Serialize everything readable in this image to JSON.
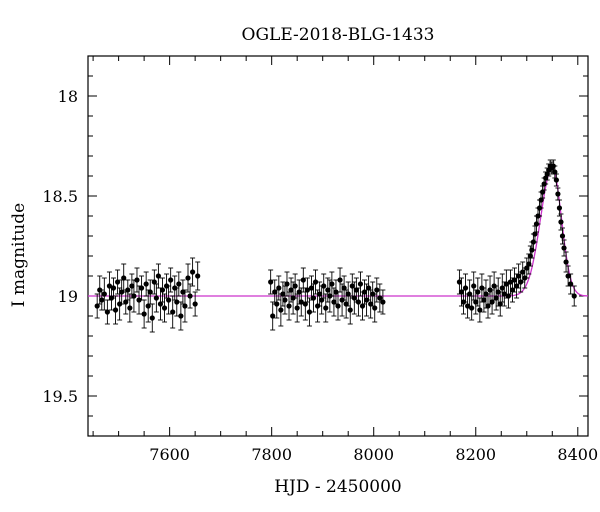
{
  "chart_data": {
    "type": "scatter",
    "title": "OGLE-2018-BLG-1433",
    "xlabel": "HJD - 2450000",
    "ylabel": "I magnitude",
    "xlim": [
      7440,
      8420
    ],
    "ylim": [
      17.8,
      19.7
    ],
    "y_inverted": true,
    "grid": false,
    "xticks_major": [
      7600,
      7800,
      8000,
      8200,
      8400
    ],
    "xtick_labels": [
      "7600",
      "7800",
      "8000",
      "8200",
      "8400"
    ],
    "yticks_major": [
      18,
      18.5,
      19,
      19.5
    ],
    "ytick_labels": [
      "18",
      "18.5",
      "19",
      "19.5"
    ],
    "marker_color": "#000000",
    "model_color": "#cc33cc",
    "model": {
      "baseline": 19.0,
      "peak_t": 8350,
      "peak_mag": 18.36,
      "rise_width": 23,
      "fall_width": 18
    },
    "series": [
      {
        "points": [
          {
            "x": 7458,
            "y": 19.05,
            "e": 0.06
          },
          {
            "x": 7463,
            "y": 18.97,
            "e": 0.07
          },
          {
            "x": 7467,
            "y": 19.02,
            "e": 0.05
          },
          {
            "x": 7472,
            "y": 18.99,
            "e": 0.08
          },
          {
            "x": 7478,
            "y": 19.08,
            "e": 0.06
          },
          {
            "x": 7482,
            "y": 18.95,
            "e": 0.07
          },
          {
            "x": 7486,
            "y": 19.01,
            "e": 0.06
          },
          {
            "x": 7490,
            "y": 18.96,
            "e": 0.05
          },
          {
            "x": 7494,
            "y": 19.07,
            "e": 0.07
          },
          {
            "x": 7498,
            "y": 18.93,
            "e": 0.06
          },
          {
            "x": 7502,
            "y": 19.04,
            "e": 0.08
          },
          {
            "x": 7506,
            "y": 18.98,
            "e": 0.06
          },
          {
            "x": 7510,
            "y": 18.91,
            "e": 0.07
          },
          {
            "x": 7514,
            "y": 19.03,
            "e": 0.06
          },
          {
            "x": 7518,
            "y": 18.97,
            "e": 0.05
          },
          {
            "x": 7522,
            "y": 19.06,
            "e": 0.07
          },
          {
            "x": 7526,
            "y": 18.95,
            "e": 0.06
          },
          {
            "x": 7530,
            "y": 19.0,
            "e": 0.08
          },
          {
            "x": 7536,
            "y": 18.92,
            "e": 0.06
          },
          {
            "x": 7540,
            "y": 19.02,
            "e": 0.07
          },
          {
            "x": 7545,
            "y": 18.96,
            "e": 0.06
          },
          {
            "x": 7550,
            "y": 19.09,
            "e": 0.07
          },
          {
            "x": 7554,
            "y": 18.94,
            "e": 0.06
          },
          {
            "x": 7558,
            "y": 19.05,
            "e": 0.08
          },
          {
            "x": 7562,
            "y": 18.98,
            "e": 0.06
          },
          {
            "x": 7566,
            "y": 19.11,
            "e": 0.07
          },
          {
            "x": 7570,
            "y": 18.93,
            "e": 0.06
          },
          {
            "x": 7574,
            "y": 19.01,
            "e": 0.07
          },
          {
            "x": 7578,
            "y": 18.9,
            "e": 0.06
          },
          {
            "x": 7582,
            "y": 19.04,
            "e": 0.08
          },
          {
            "x": 7586,
            "y": 18.97,
            "e": 0.06
          },
          {
            "x": 7590,
            "y": 19.06,
            "e": 0.07
          },
          {
            "x": 7594,
            "y": 18.95,
            "e": 0.06
          },
          {
            "x": 7598,
            "y": 19.02,
            "e": 0.07
          },
          {
            "x": 7602,
            "y": 18.92,
            "e": 0.06
          },
          {
            "x": 7606,
            "y": 19.08,
            "e": 0.08
          },
          {
            "x": 7610,
            "y": 18.96,
            "e": 0.06
          },
          {
            "x": 7614,
            "y": 19.03,
            "e": 0.07
          },
          {
            "x": 7618,
            "y": 18.94,
            "e": 0.06
          },
          {
            "x": 7622,
            "y": 19.1,
            "e": 0.07
          },
          {
            "x": 7626,
            "y": 18.98,
            "e": 0.06
          },
          {
            "x": 7630,
            "y": 19.05,
            "e": 0.08
          },
          {
            "x": 7636,
            "y": 18.91,
            "e": 0.07
          },
          {
            "x": 7640,
            "y": 19.0,
            "e": 0.06
          },
          {
            "x": 7645,
            "y": 18.88,
            "e": 0.07
          },
          {
            "x": 7650,
            "y": 19.04,
            "e": 0.06
          },
          {
            "x": 7655,
            "y": 18.9,
            "e": 0.07
          },
          {
            "x": 7798,
            "y": 18.93,
            "e": 0.06
          },
          {
            "x": 7802,
            "y": 19.1,
            "e": 0.07
          },
          {
            "x": 7806,
            "y": 18.98,
            "e": 0.06
          },
          {
            "x": 7810,
            "y": 19.04,
            "e": 0.07
          },
          {
            "x": 7814,
            "y": 18.96,
            "e": 0.06
          },
          {
            "x": 7818,
            "y": 19.07,
            "e": 0.08
          },
          {
            "x": 7822,
            "y": 18.99,
            "e": 0.06
          },
          {
            "x": 7826,
            "y": 19.02,
            "e": 0.07
          },
          {
            "x": 7830,
            "y": 18.94,
            "e": 0.06
          },
          {
            "x": 7834,
            "y": 19.05,
            "e": 0.07
          },
          {
            "x": 7838,
            "y": 18.97,
            "e": 0.06
          },
          {
            "x": 7842,
            "y": 19.01,
            "e": 0.08
          },
          {
            "x": 7846,
            "y": 18.95,
            "e": 0.06
          },
          {
            "x": 7850,
            "y": 19.06,
            "e": 0.07
          },
          {
            "x": 7854,
            "y": 18.98,
            "e": 0.06
          },
          {
            "x": 7858,
            "y": 19.03,
            "e": 0.07
          },
          {
            "x": 7862,
            "y": 18.92,
            "e": 0.06
          },
          {
            "x": 7866,
            "y": 19.04,
            "e": 0.08
          },
          {
            "x": 7870,
            "y": 18.97,
            "e": 0.06
          },
          {
            "x": 7874,
            "y": 19.08,
            "e": 0.07
          },
          {
            "x": 7878,
            "y": 18.96,
            "e": 0.06
          },
          {
            "x": 7882,
            "y": 19.01,
            "e": 0.07
          },
          {
            "x": 7886,
            "y": 18.93,
            "e": 0.06
          },
          {
            "x": 7890,
            "y": 19.05,
            "e": 0.08
          },
          {
            "x": 7894,
            "y": 18.99,
            "e": 0.06
          },
          {
            "x": 7898,
            "y": 19.02,
            "e": 0.07
          },
          {
            "x": 7902,
            "y": 18.95,
            "e": 0.06
          },
          {
            "x": 7906,
            "y": 19.06,
            "e": 0.07
          },
          {
            "x": 7910,
            "y": 18.97,
            "e": 0.06
          },
          {
            "x": 7914,
            "y": 19.0,
            "e": 0.08
          },
          {
            "x": 7918,
            "y": 18.94,
            "e": 0.06
          },
          {
            "x": 7922,
            "y": 19.03,
            "e": 0.07
          },
          {
            "x": 7926,
            "y": 18.98,
            "e": 0.06
          },
          {
            "x": 7930,
            "y": 19.05,
            "e": 0.07
          },
          {
            "x": 7934,
            "y": 18.92,
            "e": 0.06
          },
          {
            "x": 7938,
            "y": 19.02,
            "e": 0.08
          },
          {
            "x": 7942,
            "y": 18.96,
            "e": 0.06
          },
          {
            "x": 7946,
            "y": 19.04,
            "e": 0.07
          },
          {
            "x": 7950,
            "y": 18.99,
            "e": 0.06
          },
          {
            "x": 7954,
            "y": 19.07,
            "e": 0.07
          },
          {
            "x": 7958,
            "y": 18.95,
            "e": 0.06
          },
          {
            "x": 7962,
            "y": 19.01,
            "e": 0.08
          },
          {
            "x": 7966,
            "y": 18.97,
            "e": 0.06
          },
          {
            "x": 7970,
            "y": 19.03,
            "e": 0.07
          },
          {
            "x": 7974,
            "y": 18.94,
            "e": 0.06
          },
          {
            "x": 7978,
            "y": 19.05,
            "e": 0.07
          },
          {
            "x": 7982,
            "y": 18.98,
            "e": 0.06
          },
          {
            "x": 7986,
            "y": 19.02,
            "e": 0.08
          },
          {
            "x": 7990,
            "y": 18.96,
            "e": 0.06
          },
          {
            "x": 7994,
            "y": 19.04,
            "e": 0.07
          },
          {
            "x": 7998,
            "y": 18.99,
            "e": 0.06
          },
          {
            "x": 8002,
            "y": 19.06,
            "e": 0.07
          },
          {
            "x": 8006,
            "y": 18.97,
            "e": 0.06
          },
          {
            "x": 8012,
            "y": 19.01,
            "e": 0.07
          },
          {
            "x": 8018,
            "y": 19.03,
            "e": 0.06
          },
          {
            "x": 8168,
            "y": 18.93,
            "e": 0.06
          },
          {
            "x": 8172,
            "y": 18.98,
            "e": 0.07
          },
          {
            "x": 8176,
            "y": 19.03,
            "e": 0.06
          },
          {
            "x": 8180,
            "y": 18.96,
            "e": 0.07
          },
          {
            "x": 8184,
            "y": 19.05,
            "e": 0.06
          },
          {
            "x": 8188,
            "y": 18.99,
            "e": 0.07
          },
          {
            "x": 8192,
            "y": 19.06,
            "e": 0.06
          },
          {
            "x": 8196,
            "y": 18.95,
            "e": 0.07
          },
          {
            "x": 8200,
            "y": 19.03,
            "e": 0.06
          },
          {
            "x": 8204,
            "y": 18.98,
            "e": 0.07
          },
          {
            "x": 8208,
            "y": 19.07,
            "e": 0.06
          },
          {
            "x": 8212,
            "y": 18.96,
            "e": 0.07
          },
          {
            "x": 8216,
            "y": 19.02,
            "e": 0.06
          },
          {
            "x": 8220,
            "y": 18.99,
            "e": 0.07
          },
          {
            "x": 8224,
            "y": 19.05,
            "e": 0.06
          },
          {
            "x": 8228,
            "y": 18.97,
            "e": 0.07
          },
          {
            "x": 8232,
            "y": 19.03,
            "e": 0.06
          },
          {
            "x": 8236,
            "y": 18.95,
            "e": 0.07
          },
          {
            "x": 8240,
            "y": 19.01,
            "e": 0.06
          },
          {
            "x": 8244,
            "y": 18.98,
            "e": 0.07
          },
          {
            "x": 8248,
            "y": 19.04,
            "e": 0.06
          },
          {
            "x": 8252,
            "y": 18.96,
            "e": 0.07
          },
          {
            "x": 8256,
            "y": 18.99,
            "e": 0.06
          },
          {
            "x": 8260,
            "y": 18.94,
            "e": 0.07
          },
          {
            "x": 8264,
            "y": 19.0,
            "e": 0.06
          },
          {
            "x": 8268,
            "y": 18.93,
            "e": 0.06
          },
          {
            "x": 8272,
            "y": 18.97,
            "e": 0.06
          },
          {
            "x": 8276,
            "y": 18.92,
            "e": 0.06
          },
          {
            "x": 8280,
            "y": 18.95,
            "e": 0.06
          },
          {
            "x": 8284,
            "y": 18.9,
            "e": 0.06
          },
          {
            "x": 8288,
            "y": 18.93,
            "e": 0.05
          },
          {
            "x": 8292,
            "y": 18.88,
            "e": 0.05
          },
          {
            "x": 8296,
            "y": 18.91,
            "e": 0.05
          },
          {
            "x": 8300,
            "y": 18.86,
            "e": 0.05
          },
          {
            "x": 8304,
            "y": 18.84,
            "e": 0.05
          },
          {
            "x": 8307,
            "y": 18.8,
            "e": 0.05
          },
          {
            "x": 8310,
            "y": 18.77,
            "e": 0.04
          },
          {
            "x": 8313,
            "y": 18.73,
            "e": 0.04
          },
          {
            "x": 8316,
            "y": 18.69,
            "e": 0.04
          },
          {
            "x": 8319,
            "y": 18.64,
            "e": 0.04
          },
          {
            "x": 8322,
            "y": 18.6,
            "e": 0.04
          },
          {
            "x": 8325,
            "y": 18.56,
            "e": 0.04
          },
          {
            "x": 8328,
            "y": 18.52,
            "e": 0.04
          },
          {
            "x": 8331,
            "y": 18.48,
            "e": 0.03
          },
          {
            "x": 8334,
            "y": 18.44,
            "e": 0.03
          },
          {
            "x": 8337,
            "y": 18.41,
            "e": 0.03
          },
          {
            "x": 8340,
            "y": 18.39,
            "e": 0.03
          },
          {
            "x": 8343,
            "y": 18.37,
            "e": 0.03
          },
          {
            "x": 8346,
            "y": 18.35,
            "e": 0.03
          },
          {
            "x": 8349,
            "y": 18.36,
            "e": 0.03
          },
          {
            "x": 8352,
            "y": 18.35,
            "e": 0.03
          },
          {
            "x": 8355,
            "y": 18.38,
            "e": 0.03
          },
          {
            "x": 8358,
            "y": 18.42,
            "e": 0.03
          },
          {
            "x": 8361,
            "y": 18.49,
            "e": 0.03
          },
          {
            "x": 8364,
            "y": 18.56,
            "e": 0.04
          },
          {
            "x": 8367,
            "y": 18.63,
            "e": 0.04
          },
          {
            "x": 8370,
            "y": 18.7,
            "e": 0.04
          },
          {
            "x": 8373,
            "y": 18.76,
            "e": 0.04
          },
          {
            "x": 8377,
            "y": 18.83,
            "e": 0.05
          },
          {
            "x": 8381,
            "y": 18.9,
            "e": 0.05
          },
          {
            "x": 8386,
            "y": 18.94,
            "e": 0.05
          },
          {
            "x": 8393,
            "y": 19.0,
            "e": 0.05
          }
        ]
      }
    ]
  }
}
